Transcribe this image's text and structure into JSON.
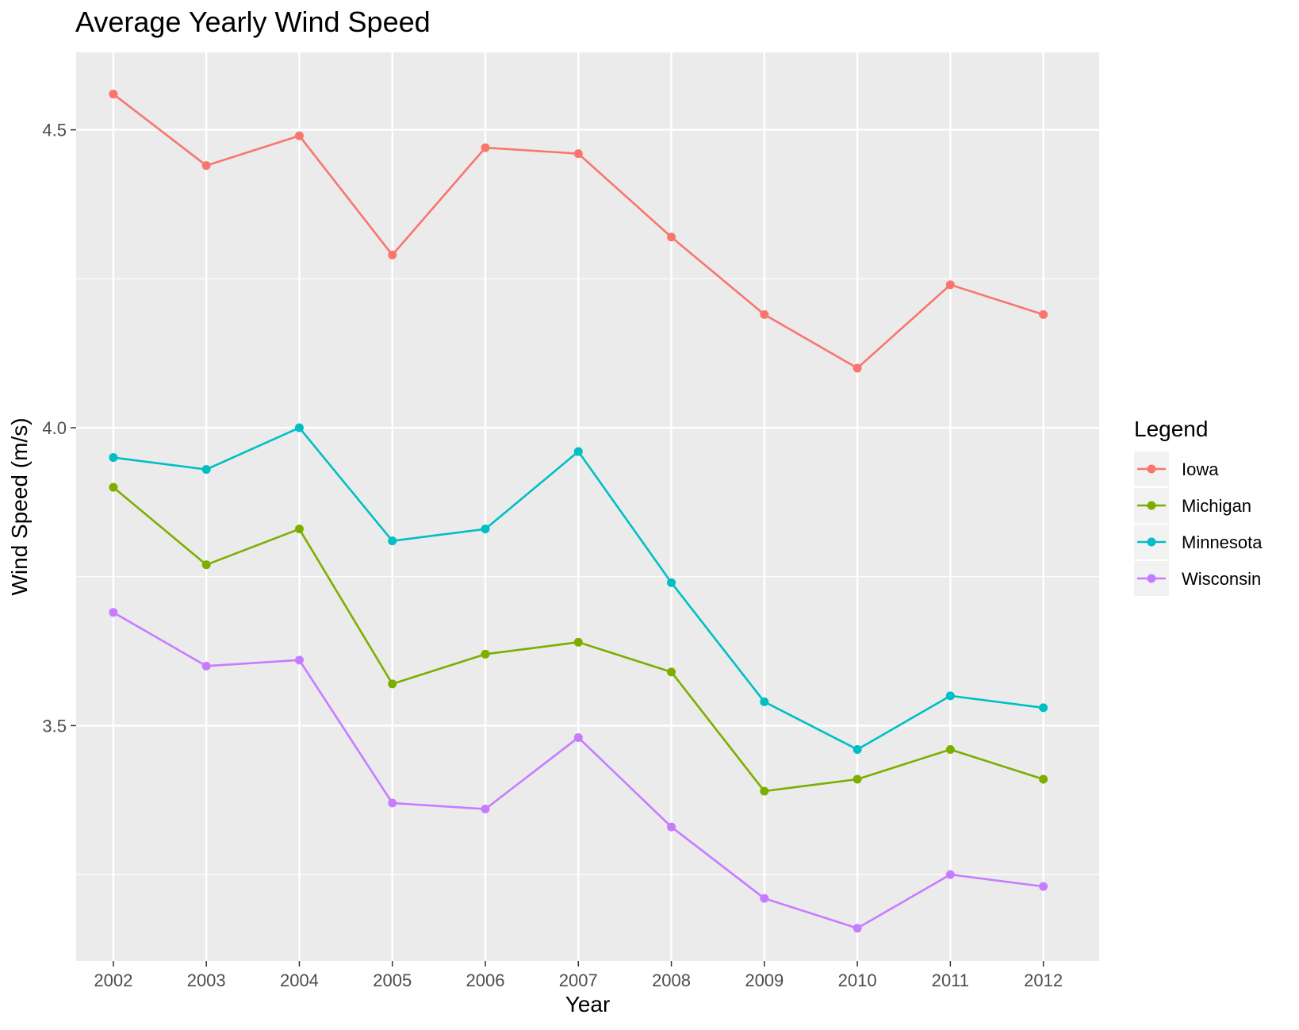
{
  "chart_data": {
    "type": "line",
    "title": "Average Yearly Wind Speed",
    "xlabel": "Year",
    "ylabel": "Wind Speed (m/s)",
    "x": [
      2002,
      2003,
      2004,
      2005,
      2006,
      2007,
      2008,
      2009,
      2010,
      2011,
      2012
    ],
    "x_tick_labels": [
      "2002",
      "2003",
      "2004",
      "2005",
      "2006",
      "2007",
      "2008",
      "2009",
      "2010",
      "2011",
      "2012"
    ],
    "y_ticks": [
      3.5,
      4.0,
      4.5
    ],
    "y_tick_labels": [
      "3.5",
      "4.0",
      "4.5"
    ],
    "xlim": [
      2001.6,
      2012.6
    ],
    "ylim": [
      3.105,
      4.63
    ],
    "grid": true,
    "legend": {
      "title": "Legend",
      "position": "right"
    },
    "series": [
      {
        "name": "Iowa",
        "color": "#F8766D",
        "values": [
          4.56,
          4.44,
          4.49,
          4.29,
          4.47,
          4.46,
          4.32,
          4.19,
          4.1,
          4.24,
          4.19
        ]
      },
      {
        "name": "Michigan",
        "color": "#7CAE00",
        "values": [
          3.9,
          3.77,
          3.83,
          3.57,
          3.62,
          3.64,
          3.59,
          3.39,
          3.41,
          3.46,
          3.41
        ]
      },
      {
        "name": "Minnesota",
        "color": "#00BFC4",
        "values": [
          3.95,
          3.93,
          4.0,
          3.81,
          3.83,
          3.96,
          3.74,
          3.54,
          3.46,
          3.55,
          3.53
        ]
      },
      {
        "name": "Wisconsin",
        "color": "#C77CFF",
        "values": [
          3.69,
          3.6,
          3.61,
          3.37,
          3.36,
          3.48,
          3.33,
          3.21,
          3.16,
          3.25,
          3.23
        ]
      }
    ]
  }
}
